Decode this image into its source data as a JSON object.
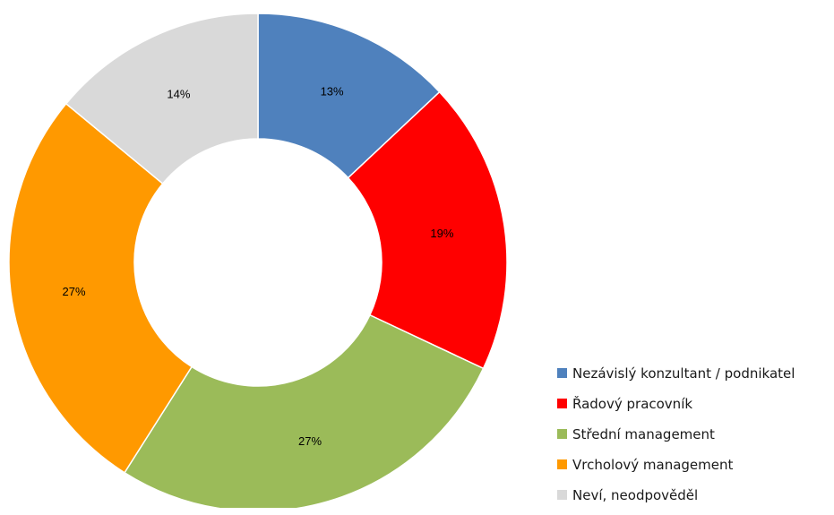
{
  "chart_data": {
    "type": "pie",
    "variant": "donut",
    "title": "",
    "legend_position": "right-bottom",
    "slices": [
      {
        "label": "Nezávislý konzultant / podnikatel",
        "value": 13,
        "display": "13%",
        "color": "#4f81bd"
      },
      {
        "label": "Řadový pracovník",
        "value": 19,
        "display": "19%",
        "color": "#ff0000"
      },
      {
        "label": "Střední management",
        "value": 27,
        "display": "27%",
        "color": "#9bbb59"
      },
      {
        "label": "Vrcholový management",
        "value": 27,
        "display": "27%",
        "color": "#ff9900"
      },
      {
        "label": "Neví, neodpověděl",
        "value": 14,
        "display": "14%",
        "color": "#d9d9d9"
      }
    ]
  }
}
